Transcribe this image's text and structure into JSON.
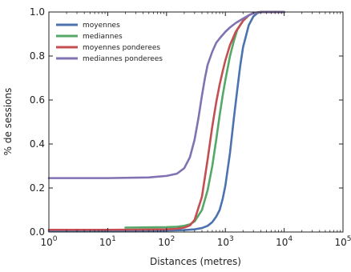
{
  "chart_data": {
    "type": "line",
    "xlabel": "Distances (metres)",
    "ylabel": "% de sessions",
    "xscale": "log",
    "xlim": [
      1,
      100000
    ],
    "ylim": [
      0.0,
      1.0
    ],
    "x_ticks": [
      {
        "value": 1,
        "base": "10",
        "exp": "0"
      },
      {
        "value": 10,
        "base": "10",
        "exp": "1"
      },
      {
        "value": 100,
        "base": "10",
        "exp": "2"
      },
      {
        "value": 1000,
        "base": "10",
        "exp": "3"
      },
      {
        "value": 10000,
        "base": "10",
        "exp": "4"
      },
      {
        "value": 100000,
        "base": "10",
        "exp": "5"
      }
    ],
    "y_ticks": [
      {
        "value": 0.0,
        "label": "0.0"
      },
      {
        "value": 0.2,
        "label": "0.2"
      },
      {
        "value": 0.4,
        "label": "0.4"
      },
      {
        "value": 0.6,
        "label": "0.6"
      },
      {
        "value": 0.8,
        "label": "0.8"
      },
      {
        "value": 1.0,
        "label": "1.0"
      }
    ],
    "grid": false,
    "legend_position": "top-left",
    "series": [
      {
        "name": "moyennes",
        "color": "#4c72b0",
        "x": [
          1,
          10,
          50,
          100,
          200,
          300,
          400,
          500,
          600,
          700,
          800,
          900,
          1000,
          1200,
          1400,
          1600,
          1800,
          2000,
          2500,
          3000,
          3500,
          4000,
          6000,
          10000
        ],
        "y": [
          0.005,
          0.005,
          0.006,
          0.007,
          0.009,
          0.012,
          0.018,
          0.028,
          0.045,
          0.07,
          0.1,
          0.15,
          0.21,
          0.36,
          0.52,
          0.65,
          0.76,
          0.84,
          0.94,
          0.98,
          0.995,
          1.0,
          1.0,
          1.0
        ]
      },
      {
        "name": "mediannes",
        "color": "#55a868",
        "x": [
          20,
          50,
          100,
          150,
          200,
          250,
          300,
          400,
          500,
          600,
          700,
          800,
          900,
          1000,
          1200,
          1400,
          1600,
          2000,
          2500,
          3000,
          4000,
          10000
        ],
        "y": [
          0.02,
          0.021,
          0.022,
          0.024,
          0.028,
          0.035,
          0.048,
          0.1,
          0.19,
          0.3,
          0.42,
          0.53,
          0.62,
          0.69,
          0.8,
          0.87,
          0.92,
          0.96,
          0.985,
          0.995,
          1.0,
          1.0
        ]
      },
      {
        "name": "moyennes ponderees",
        "color": "#c44e52",
        "x": [
          1,
          10,
          50,
          100,
          150,
          200,
          250,
          300,
          400,
          500,
          600,
          700,
          800,
          900,
          1000,
          1200,
          1500,
          2000,
          2500,
          3000,
          4000,
          10000
        ],
        "y": [
          0.01,
          0.01,
          0.011,
          0.012,
          0.015,
          0.02,
          0.03,
          0.055,
          0.16,
          0.33,
          0.48,
          0.59,
          0.67,
          0.73,
          0.78,
          0.85,
          0.91,
          0.96,
          0.985,
          0.995,
          1.0,
          1.0
        ]
      },
      {
        "name": "mediannes ponderees",
        "color": "#8172b2",
        "x": [
          1,
          10,
          50,
          100,
          150,
          200,
          250,
          300,
          350,
          400,
          450,
          500,
          600,
          700,
          800,
          1000,
          1200,
          1500,
          2000,
          2500,
          3000,
          4000,
          10000
        ],
        "y": [
          0.245,
          0.245,
          0.248,
          0.255,
          0.265,
          0.29,
          0.34,
          0.42,
          0.52,
          0.62,
          0.7,
          0.76,
          0.82,
          0.86,
          0.88,
          0.91,
          0.93,
          0.95,
          0.97,
          0.985,
          0.995,
          1.0,
          1.0
        ]
      }
    ]
  }
}
